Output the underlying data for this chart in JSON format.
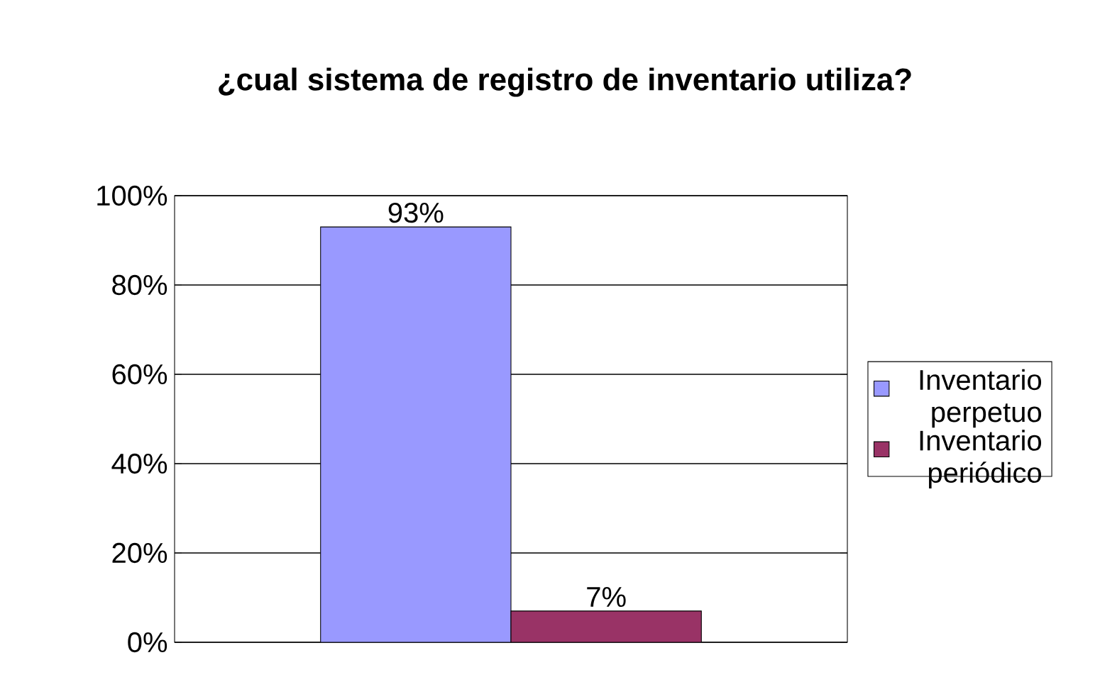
{
  "chart_data": {
    "type": "bar",
    "title": "¿cual sistema de registro de inventario utiliza?",
    "categories": [
      null
    ],
    "series": [
      {
        "name": "Inventario perpetuo",
        "color": "#9999ff",
        "values": [
          93
        ],
        "value_labels": [
          "93%"
        ]
      },
      {
        "name": "Inventario periódico",
        "color": "#993366",
        "values": [
          7
        ],
        "value_labels": [
          "7%"
        ]
      }
    ],
    "ylim": [
      0,
      100
    ],
    "yticks": [
      {
        "value": 0,
        "label": "0%"
      },
      {
        "value": 20,
        "label": "20%"
      },
      {
        "value": 40,
        "label": "40%"
      },
      {
        "value": 60,
        "label": "60%"
      },
      {
        "value": 80,
        "label": "80%"
      },
      {
        "value": 100,
        "label": "100%"
      }
    ],
    "grid": "y",
    "legend": "right"
  }
}
